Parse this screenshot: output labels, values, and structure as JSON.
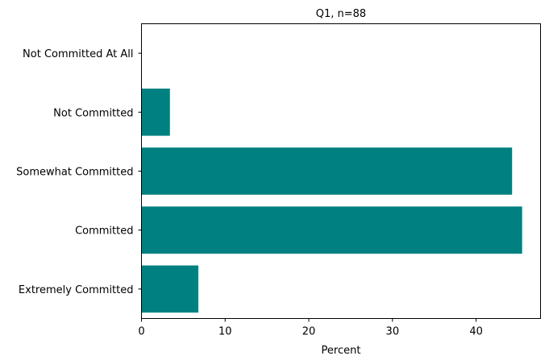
{
  "chart_data": {
    "type": "bar",
    "orientation": "horizontal",
    "title": "Q1, n=88",
    "xlabel": "Percent",
    "ylabel": "",
    "xlim": [
      0,
      47.7
    ],
    "xticks": [
      0,
      10,
      20,
      30,
      40
    ],
    "categories": [
      "Not Committed At All",
      "Not Committed",
      "Somewhat Committed",
      "Committed",
      "Extremely Committed"
    ],
    "values": [
      0.0,
      3.4,
      44.3,
      45.5,
      6.8
    ],
    "bar_color": "#008080",
    "grid": false,
    "legend": "none"
  }
}
